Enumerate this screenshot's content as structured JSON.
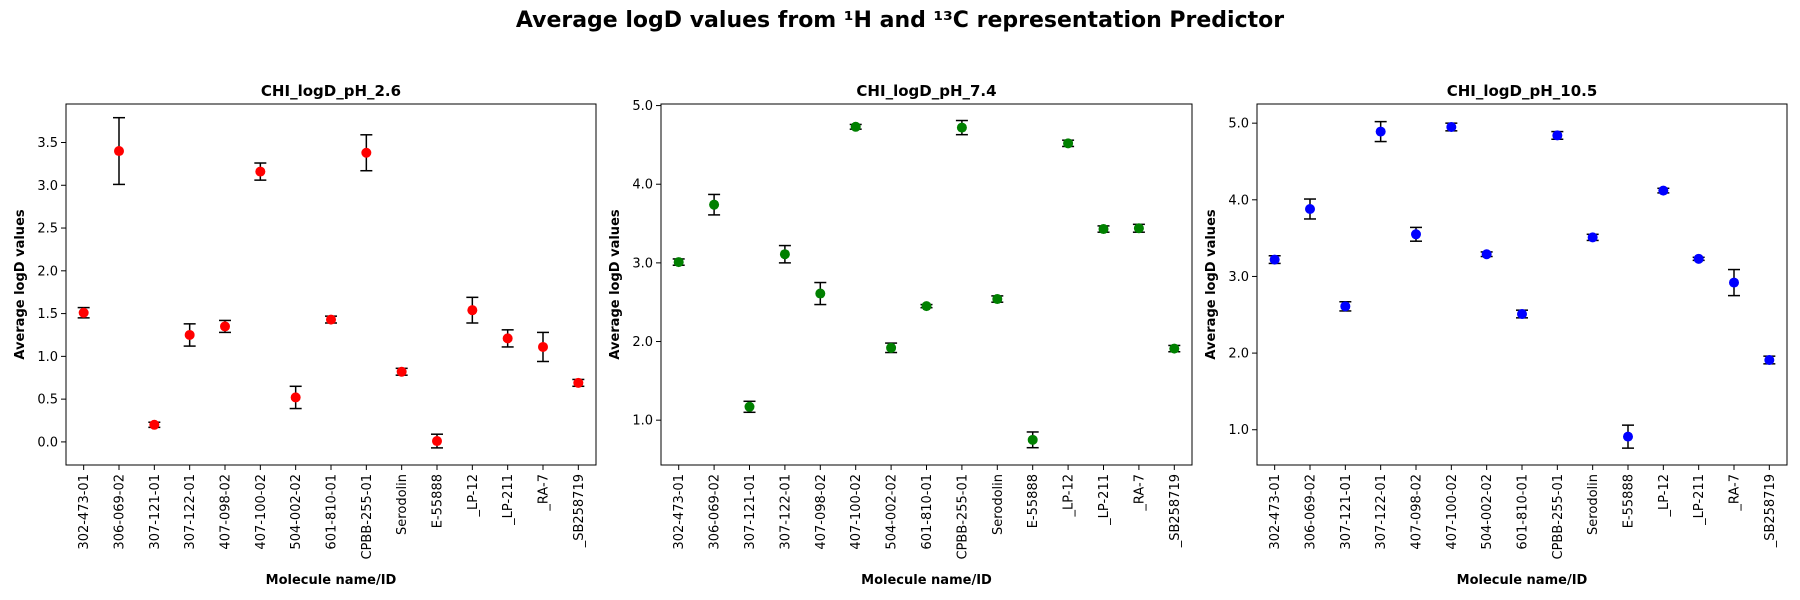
{
  "figure": {
    "title": "Average logD values from ¹H and ¹³C representation Predictor"
  },
  "chart_data": [
    {
      "type": "scatter",
      "title": "CHI_logD_pH_2.6",
      "xlabel": "Molecule name/ID",
      "ylabel": "Average logD values",
      "color": "#ff0000",
      "categories": [
        "302-473-01",
        "306-069-02",
        "307-121-01",
        "307-122-01",
        "407-098-02",
        "407-100-02",
        "504-002-02",
        "601-810-01",
        "CPBB-255-01",
        "Serodolin",
        "E-55888",
        "_LP-12",
        "_LP-211",
        "_RA-7",
        "_SB258719"
      ],
      "values": [
        1.51,
        3.4,
        0.2,
        1.25,
        1.35,
        3.16,
        0.52,
        1.43,
        3.38,
        0.82,
        0.01,
        1.54,
        1.21,
        1.11,
        0.69
      ],
      "errors": [
        0.06,
        0.39,
        0.03,
        0.13,
        0.07,
        0.1,
        0.13,
        0.04,
        0.21,
        0.04,
        0.08,
        0.15,
        0.1,
        0.17,
        0.04
      ],
      "ylim": [
        -0.27,
        3.95
      ],
      "yticks": [
        "0.0",
        "0.5",
        "1.0",
        "1.5",
        "2.0",
        "2.5",
        "3.0",
        "3.5"
      ],
      "ytick_values": [
        0.0,
        0.5,
        1.0,
        1.5,
        2.0,
        2.5,
        3.0,
        3.5
      ]
    },
    {
      "type": "scatter",
      "title": "CHI_logD_pH_7.4",
      "xlabel": "Molecule name/ID",
      "ylabel": "Average logD values",
      "color": "#008000",
      "categories": [
        "302-473-01",
        "306-069-02",
        "307-121-01",
        "307-122-01",
        "407-098-02",
        "407-100-02",
        "504-002-02",
        "601-810-01",
        "CPBB-255-01",
        "Serodolin",
        "E-55888",
        "_LP-12",
        "_LP-211",
        "_RA-7",
        "_SB258719"
      ],
      "values": [
        3.01,
        3.74,
        1.17,
        3.11,
        2.61,
        4.73,
        1.92,
        2.45,
        4.72,
        2.54,
        0.75,
        4.52,
        3.43,
        3.44,
        1.91
      ],
      "errors": [
        0.04,
        0.13,
        0.07,
        0.11,
        0.14,
        0.03,
        0.06,
        0.02,
        0.09,
        0.04,
        0.1,
        0.04,
        0.04,
        0.05,
        0.04
      ],
      "ylim": [
        0.43,
        5.02
      ],
      "yticks": [
        "1.0",
        "2.0",
        "3.0",
        "4.0",
        "5.0"
      ],
      "ytick_values": [
        1.0,
        2.0,
        3.0,
        4.0,
        5.0
      ]
    },
    {
      "type": "scatter",
      "title": "CHI_logD_pH_10.5",
      "xlabel": "Molecule name/ID",
      "ylabel": "Average logD values",
      "color": "#0000ff",
      "categories": [
        "302-473-01",
        "306-069-02",
        "307-121-01",
        "307-122-01",
        "407-098-02",
        "407-100-02",
        "504-002-02",
        "601-810-01",
        "CPBB-255-01",
        "Serodolin",
        "E-55888",
        "_LP-12",
        "_LP-211",
        "_RA-7",
        "_SB258719"
      ],
      "values": [
        3.22,
        3.88,
        2.61,
        4.89,
        3.55,
        4.95,
        3.29,
        2.51,
        4.84,
        3.51,
        0.91,
        4.12,
        3.23,
        2.92,
        1.91
      ],
      "errors": [
        0.05,
        0.13,
        0.06,
        0.13,
        0.09,
        0.05,
        0.03,
        0.05,
        0.05,
        0.04,
        0.15,
        0.03,
        0.02,
        0.17,
        0.05
      ],
      "ylim": [
        0.54,
        5.25
      ],
      "yticks": [
        "1.0",
        "2.0",
        "3.0",
        "4.0",
        "5.0"
      ],
      "ytick_values": [
        1.0,
        2.0,
        3.0,
        4.0,
        5.0
      ]
    }
  ]
}
